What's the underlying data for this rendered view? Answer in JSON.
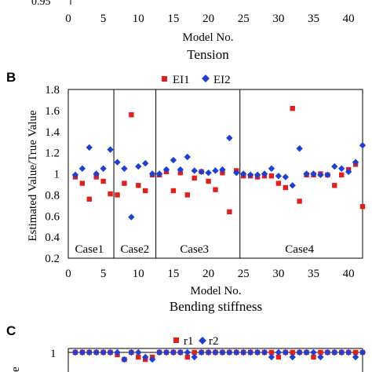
{
  "chart_data": [
    {
      "panel": "",
      "type": "scatter",
      "title": "Tension",
      "xlabel": "Model No.",
      "ylabel": "",
      "xlim": [
        0,
        42
      ],
      "x_ticks": [
        "0",
        "5",
        "10",
        "15",
        "20",
        "25",
        "30",
        "35",
        "40"
      ],
      "y_ticks": [
        "0.95"
      ],
      "series": []
    },
    {
      "panel": "B",
      "type": "scatter",
      "title": "Bending stiffness",
      "xlabel": "Model No.",
      "ylabel": "Estimated Value/True Value",
      "xlim": [
        0,
        42
      ],
      "ylim": [
        0.2,
        1.8
      ],
      "x_ticks": [
        "0",
        "5",
        "10",
        "15",
        "20",
        "25",
        "30",
        "35",
        "40"
      ],
      "y_ticks": [
        "0.2",
        "0.4",
        "0.6",
        "0.8",
        "1",
        "1.2",
        "1.4",
        "1.6",
        "1.8"
      ],
      "legend_position": "top-center",
      "annotations": [
        {
          "text": "Case1",
          "x": 3
        },
        {
          "text": "Case2",
          "x": 9.5
        },
        {
          "text": "Case3",
          "x": 18
        },
        {
          "text": "Case4",
          "x": 33
        }
      ],
      "series": [
        {
          "name": "EI1",
          "marker": "square",
          "color": "#e0201d",
          "points": [
            [
              1,
              0.97
            ],
            [
              2,
              0.91
            ],
            [
              3,
              0.76
            ],
            [
              4,
              0.97
            ],
            [
              5,
              0.93
            ],
            [
              6,
              0.81
            ],
            [
              7,
              0.8
            ],
            [
              8,
              0.91
            ],
            [
              9,
              1.56
            ],
            [
              10,
              0.89
            ],
            [
              11,
              0.84
            ],
            [
              12,
              0.99
            ],
            [
              13,
              0.99
            ],
            [
              14,
              1.02
            ],
            [
              15,
              0.84
            ],
            [
              16,
              1.01
            ],
            [
              17,
              0.8
            ],
            [
              18,
              0.96
            ],
            [
              19,
              1.02
            ],
            [
              20,
              0.93
            ],
            [
              21,
              0.85
            ],
            [
              22,
              1.01
            ],
            [
              23,
              0.64
            ],
            [
              24,
              1.03
            ],
            [
              25,
              0.98
            ],
            [
              26,
              0.98
            ],
            [
              27,
              0.97
            ],
            [
              28,
              0.98
            ],
            [
              29,
              0.98
            ],
            [
              30,
              0.91
            ],
            [
              31,
              0.87
            ],
            [
              32,
              1.62
            ],
            [
              33,
              0.74
            ],
            [
              34,
              0.99
            ],
            [
              35,
              0.99
            ],
            [
              36,
              1.0
            ],
            [
              37,
              0.99
            ],
            [
              38,
              0.89
            ],
            [
              39,
              0.99
            ],
            [
              40,
              1.04
            ],
            [
              41,
              1.09
            ],
            [
              42,
              0.69
            ]
          ]
        },
        {
          "name": "EI2",
          "marker": "diamond",
          "color": "#1f3fd0",
          "points": [
            [
              1,
              0.99
            ],
            [
              2,
              1.05
            ],
            [
              3,
              1.25
            ],
            [
              4,
              1.0
            ],
            [
              5,
              1.05
            ],
            [
              6,
              1.23
            ],
            [
              7,
              1.11
            ],
            [
              8,
              1.05
            ],
            [
              9,
              0.59
            ],
            [
              10,
              1.07
            ],
            [
              11,
              1.1
            ],
            [
              12,
              1.0
            ],
            [
              13,
              1.0
            ],
            [
              14,
              1.04
            ],
            [
              15,
              1.13
            ],
            [
              16,
              1.04
            ],
            [
              17,
              1.16
            ],
            [
              18,
              1.03
            ],
            [
              19,
              1.02
            ],
            [
              20,
              1.01
            ],
            [
              21,
              1.03
            ],
            [
              22,
              1.04
            ],
            [
              23,
              1.34
            ],
            [
              24,
              1.01
            ],
            [
              25,
              1.0
            ],
            [
              26,
              0.99
            ],
            [
              27,
              0.99
            ],
            [
              28,
              1.0
            ],
            [
              29,
              1.05
            ],
            [
              30,
              0.98
            ],
            [
              31,
              0.97
            ],
            [
              32,
              0.89
            ],
            [
              33,
              1.24
            ],
            [
              34,
              1.0
            ],
            [
              35,
              1.0
            ],
            [
              36,
              0.99
            ],
            [
              37,
              0.99
            ],
            [
              38,
              1.07
            ],
            [
              39,
              1.05
            ],
            [
              40,
              1.02
            ],
            [
              41,
              1.11
            ],
            [
              42,
              1.27
            ]
          ]
        }
      ]
    },
    {
      "panel": "C",
      "type": "scatter",
      "title": "",
      "xlabel": "",
      "ylabel": "",
      "xlim": [
        0,
        42
      ],
      "ylim": [
        0.9,
        1.02
      ],
      "y_ticks": [
        "1"
      ],
      "legend_position": "top-center",
      "series": [
        {
          "name": "r1",
          "marker": "square",
          "color": "#e0201d",
          "points": [
            [
              1,
              1.0
            ],
            [
              2,
              1.0
            ],
            [
              3,
              1.0
            ],
            [
              4,
              1.0
            ],
            [
              5,
              1.0
            ],
            [
              6,
              1.0
            ],
            [
              7,
              0.995
            ],
            [
              8,
              0.985
            ],
            [
              9,
              1.0
            ],
            [
              10,
              0.99
            ],
            [
              11,
              0.985
            ],
            [
              12,
              0.99
            ],
            [
              13,
              1.0
            ],
            [
              14,
              1.0
            ],
            [
              15,
              1.0
            ],
            [
              16,
              1.0
            ],
            [
              17,
              0.99
            ],
            [
              18,
              1.0
            ],
            [
              19,
              1.0
            ],
            [
              20,
              1.0
            ],
            [
              21,
              1.0
            ],
            [
              22,
              1.0
            ],
            [
              23,
              1.0
            ],
            [
              24,
              1.0
            ],
            [
              25,
              1.0
            ],
            [
              26,
              1.0
            ],
            [
              27,
              1.0
            ],
            [
              28,
              1.0
            ],
            [
              29,
              1.0
            ],
            [
              30,
              0.99
            ],
            [
              31,
              1.0
            ],
            [
              32,
              1.0
            ],
            [
              33,
              1.0
            ],
            [
              34,
              1.0
            ],
            [
              35,
              0.99
            ],
            [
              36,
              1.0
            ],
            [
              37,
              1.0
            ],
            [
              38,
              1.0
            ],
            [
              39,
              1.0
            ],
            [
              40,
              1.0
            ],
            [
              41,
              1.0
            ],
            [
              42,
              1.0
            ]
          ]
        },
        {
          "name": "r2",
          "marker": "diamond",
          "color": "#1f3fd0",
          "points": [
            [
              1,
              1.0
            ],
            [
              2,
              1.0
            ],
            [
              3,
              1.0
            ],
            [
              4,
              1.0
            ],
            [
              5,
              1.0
            ],
            [
              6,
              1.0
            ],
            [
              7,
              1.0
            ],
            [
              8,
              0.985
            ],
            [
              9,
              1.0
            ],
            [
              10,
              1.0
            ],
            [
              11,
              0.99
            ],
            [
              12,
              0.985
            ],
            [
              13,
              1.0
            ],
            [
              14,
              1.0
            ],
            [
              15,
              1.0
            ],
            [
              16,
              1.0
            ],
            [
              17,
              1.0
            ],
            [
              18,
              0.99
            ],
            [
              19,
              1.0
            ],
            [
              20,
              1.0
            ],
            [
              21,
              1.0
            ],
            [
              22,
              1.0
            ],
            [
              23,
              1.0
            ],
            [
              24,
              1.0
            ],
            [
              25,
              1.0
            ],
            [
              26,
              1.0
            ],
            [
              27,
              1.0
            ],
            [
              28,
              1.0
            ],
            [
              29,
              0.99
            ],
            [
              30,
              1.0
            ],
            [
              31,
              1.0
            ],
            [
              32,
              0.99
            ],
            [
              33,
              1.0
            ],
            [
              34,
              1.0
            ],
            [
              35,
              1.0
            ],
            [
              36,
              0.99
            ],
            [
              37,
              1.0
            ],
            [
              38,
              1.0
            ],
            [
              39,
              1.0
            ],
            [
              40,
              1.0
            ],
            [
              41,
              0.99
            ],
            [
              42,
              1.0
            ]
          ]
        }
      ]
    }
  ]
}
